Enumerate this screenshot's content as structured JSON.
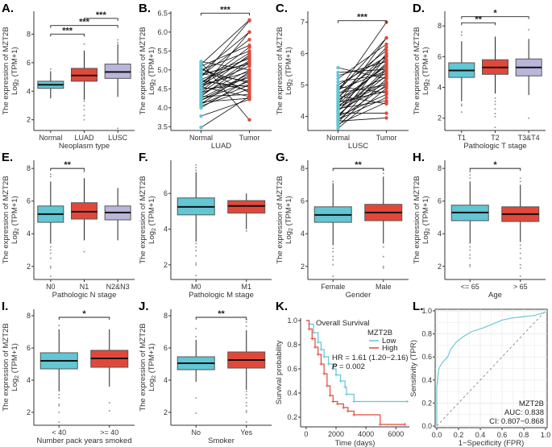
{
  "y_axis_label": {
    "line1": "The expression of MZT2B",
    "log": "Log",
    "sub": "2",
    "rest": " (TPM+1)"
  },
  "colors": {
    "cyan": "#62C6D4",
    "red": "#E2483A",
    "lavender": "#B9B6DA",
    "roc": "#6CC8D8"
  },
  "chart_data": [
    {
      "label": "A.",
      "type": "box",
      "xlabel": "Neoplasm type",
      "ylim": [
        1.25,
        9.6
      ],
      "yticks": [
        2,
        4,
        6,
        8
      ],
      "groups": [
        {
          "name": "Normal",
          "color": "cyan",
          "lo": 3.5,
          "q1": 4.2,
          "med": 4.45,
          "q3": 4.7,
          "hi": 5.4,
          "outliers": [
            5.55
          ]
        },
        {
          "name": "LUAD",
          "color": "red",
          "lo": 3.4,
          "q1": 4.7,
          "med": 5.1,
          "q3": 5.6,
          "hi": 6.85,
          "outliers": [
            7.3,
            3.3,
            3.0,
            2.7,
            2.3,
            2.0
          ]
        },
        {
          "name": "LUSC",
          "color": "lavender",
          "lo": 3.6,
          "q1": 4.9,
          "med": 5.35,
          "q3": 5.9,
          "hi": 7.3,
          "outliers": [
            7.6,
            7.4,
            1.4
          ]
        }
      ],
      "brackets": [
        {
          "from": 0,
          "to": 1,
          "y": 8.0,
          "text": "***"
        },
        {
          "from": 0,
          "to": 2,
          "y": 8.6,
          "text": "***"
        },
        {
          "from": 1,
          "to": 2,
          "y": 9.1,
          "text": "***"
        }
      ]
    },
    {
      "label": "B.",
      "type": "paired",
      "xlabel": "LUAD",
      "ylim": [
        3.4,
        6.55
      ],
      "yticks": [
        3.5,
        4.0,
        4.5,
        5.0,
        5.5,
        6.0,
        6.5
      ],
      "tickfmt": 1,
      "categories": [
        "Normal",
        "Tumor"
      ],
      "pairs": [
        [
          3.48,
          4.3
        ],
        [
          3.78,
          4.22
        ],
        [
          4.05,
          4.5
        ],
        [
          4.1,
          4.6
        ],
        [
          4.15,
          4.25
        ],
        [
          4.2,
          4.7
        ],
        [
          4.25,
          4.9
        ],
        [
          4.3,
          4.35
        ],
        [
          4.35,
          5.0
        ],
        [
          4.4,
          4.8
        ],
        [
          4.45,
          5.4
        ],
        [
          4.5,
          4.6
        ],
        [
          4.55,
          5.1
        ],
        [
          4.6,
          4.95
        ],
        [
          4.65,
          5.6
        ],
        [
          4.7,
          4.55
        ],
        [
          4.75,
          5.2
        ],
        [
          4.8,
          6.3
        ],
        [
          4.85,
          5.3
        ],
        [
          4.9,
          4.7
        ],
        [
          4.95,
          6.0
        ],
        [
          5.0,
          5.5
        ],
        [
          5.05,
          4.4
        ],
        [
          5.1,
          5.65
        ],
        [
          5.15,
          6.32
        ],
        [
          5.2,
          3.68
        ],
        [
          5.22,
          5.0
        ],
        [
          4.3,
          5.2
        ],
        [
          4.5,
          6.0
        ],
        [
          4.2,
          4.85
        ],
        [
          4.6,
          5.35
        ],
        [
          4.0,
          4.75
        ],
        [
          4.75,
          4.45
        ],
        [
          4.85,
          5.8
        ],
        [
          4.1,
          4.95
        ],
        [
          4.4,
          5.25
        ],
        [
          5.0,
          4.65
        ],
        [
          4.65,
          5.45
        ],
        [
          4.55,
          4.3
        ],
        [
          4.9,
          5.15
        ]
      ],
      "brackets": [
        {
          "from": 0,
          "to": 1,
          "y": 6.5,
          "text": "***"
        }
      ]
    },
    {
      "label": "C.",
      "type": "paired",
      "xlabel": "LUSC",
      "ylim": [
        3.55,
        7.35
      ],
      "yticks": [
        4,
        5,
        6,
        7
      ],
      "categories": [
        "Normal",
        "Tumor"
      ],
      "pairs": [
        [
          3.62,
          4.9
        ],
        [
          3.7,
          5.2
        ],
        [
          3.75,
          4.45
        ],
        [
          3.8,
          5.5
        ],
        [
          3.85,
          3.95
        ],
        [
          3.9,
          5.0
        ],
        [
          3.95,
          5.9
        ],
        [
          4.0,
          4.7
        ],
        [
          4.05,
          5.3
        ],
        [
          4.1,
          4.1
        ],
        [
          4.15,
          6.0
        ],
        [
          4.2,
          5.4
        ],
        [
          4.25,
          4.5
        ],
        [
          4.3,
          5.7
        ],
        [
          4.35,
          5.1
        ],
        [
          4.4,
          6.5
        ],
        [
          4.45,
          4.8
        ],
        [
          4.5,
          5.6
        ],
        [
          4.55,
          5.25
        ],
        [
          4.6,
          6.2
        ],
        [
          4.65,
          4.4
        ],
        [
          4.7,
          5.8
        ],
        [
          4.75,
          5.0
        ],
        [
          4.8,
          7.0
        ],
        [
          4.85,
          5.45
        ],
        [
          4.9,
          6.1
        ],
        [
          4.95,
          4.75
        ],
        [
          5.0,
          5.9
        ],
        [
          5.1,
          5.35
        ],
        [
          5.2,
          6.3
        ],
        [
          5.3,
          5.75
        ],
        [
          5.4,
          5.5
        ],
        [
          5.55,
          5.2
        ],
        [
          4.0,
          5.55
        ],
        [
          4.2,
          4.95
        ],
        [
          4.4,
          5.65
        ],
        [
          3.9,
          4.6
        ],
        [
          4.6,
          5.95
        ],
        [
          4.3,
          5.05
        ],
        [
          4.8,
          6.5
        ]
      ],
      "brackets": [
        {
          "from": 0,
          "to": 1,
          "y": 7.05,
          "text": "***"
        }
      ]
    },
    {
      "label": "D.",
      "type": "box",
      "xlabel": "Pathologic T stage",
      "ylim": [
        1.2,
        8.95
      ],
      "yticks": [
        2,
        4,
        6,
        8
      ],
      "groups": [
        {
          "name": "T1",
          "color": "cyan",
          "lo": 3.1,
          "q1": 4.65,
          "med": 5.1,
          "q3": 5.6,
          "hi": 7.0,
          "outliers": [
            7.6,
            7.4,
            2.9,
            2.8,
            2.4
          ]
        },
        {
          "name": "T2",
          "color": "red",
          "lo": 3.6,
          "q1": 4.85,
          "med": 5.3,
          "q3": 5.8,
          "hi": 7.3,
          "outliers": [
            3.3,
            3.1,
            2.9,
            2.6,
            2.3,
            2.1,
            1.4
          ]
        },
        {
          "name": "T3&T4",
          "color": "lavender",
          "lo": 3.5,
          "q1": 4.75,
          "med": 5.3,
          "q3": 5.85,
          "hi": 7.15,
          "outliers": [
            7.75,
            2.0
          ]
        }
      ],
      "brackets": [
        {
          "from": 0,
          "to": 1,
          "y": 8.2,
          "text": "**"
        },
        {
          "from": 0,
          "to": 2,
          "y": 8.6,
          "text": "*"
        }
      ]
    },
    {
      "label": "E.",
      "type": "box",
      "xlabel": "Pathologic N stage",
      "ylim": [
        1.2,
        8.5
      ],
      "yticks": [
        2,
        4,
        6,
        8
      ],
      "groups": [
        {
          "name": "N0",
          "color": "cyan",
          "lo": 3.4,
          "q1": 4.7,
          "med": 5.2,
          "q3": 5.7,
          "hi": 7.2,
          "outliers": [
            7.65,
            7.5,
            3.2,
            3.0,
            2.8,
            2.5,
            2.0,
            1.9,
            1.4
          ]
        },
        {
          "name": "N1",
          "color": "red",
          "lo": 3.6,
          "q1": 4.9,
          "med": 5.35,
          "q3": 5.9,
          "hi": 7.4,
          "outliers": [
            7.8,
            2.9
          ]
        },
        {
          "name": "N2&N3",
          "color": "lavender",
          "lo": 3.6,
          "q1": 4.85,
          "med": 5.3,
          "q3": 5.7,
          "hi": 6.8,
          "outliers": []
        }
      ],
      "brackets": [
        {
          "from": 0,
          "to": 1,
          "y": 8.0,
          "text": "**"
        }
      ]
    },
    {
      "label": "F.",
      "type": "box",
      "xlabel": "Pathologic M stage",
      "ylim": [
        1.18,
        7.86
      ],
      "yticks": [
        2,
        4,
        6
      ],
      "groups": [
        {
          "name": "M0",
          "color": "cyan",
          "lo": 3.3,
          "q1": 4.8,
          "med": 5.25,
          "q3": 5.75,
          "hi": 7.2,
          "outliers": [
            7.6,
            7.45,
            7.3,
            3.2,
            3.0,
            2.8,
            2.5,
            2.1,
            2.0,
            1.4
          ]
        },
        {
          "name": "M1",
          "color": "red",
          "lo": 4.0,
          "q1": 4.9,
          "med": 5.3,
          "q3": 5.6,
          "hi": 6.0,
          "outliers": [
            3.9
          ]
        }
      ],
      "brackets": []
    },
    {
      "label": "G.",
      "type": "box",
      "xlabel": "Gender",
      "ylim": [
        1.2,
        8.5
      ],
      "yticks": [
        2,
        4,
        6,
        8
      ],
      "groups": [
        {
          "name": "Female",
          "color": "cyan",
          "lo": 3.3,
          "q1": 4.7,
          "med": 5.15,
          "q3": 5.65,
          "hi": 7.1,
          "outliers": [
            7.2,
            3.1,
            2.9,
            2.6,
            2.4,
            2.1,
            1.4
          ]
        },
        {
          "name": "Male",
          "color": "red",
          "lo": 3.4,
          "q1": 4.8,
          "med": 5.3,
          "q3": 5.8,
          "hi": 7.5,
          "outliers": [
            7.9,
            7.7,
            3.2,
            2.6,
            2.0,
            1.9
          ]
        }
      ],
      "brackets": [
        {
          "from": 0,
          "to": 1,
          "y": 8.0,
          "text": "**"
        }
      ]
    },
    {
      "label": "H.",
      "type": "box",
      "xlabel": "Age",
      "ylim": [
        1.2,
        8.5
      ],
      "yticks": [
        2,
        4,
        6,
        8
      ],
      "groups": [
        {
          "name": "<= 65",
          "color": "cyan",
          "lo": 3.4,
          "q1": 4.8,
          "med": 5.3,
          "q3": 5.75,
          "hi": 7.2,
          "outliers": [
            7.8,
            7.6,
            7.4,
            3.2,
            3.0,
            2.7,
            2.5,
            2.1,
            2.0
          ]
        },
        {
          "name": "> 65",
          "color": "red",
          "lo": 3.5,
          "q1": 4.75,
          "med": 5.2,
          "q3": 5.65,
          "hi": 7.0,
          "outliers": [
            7.4,
            7.2,
            3.3,
            3.1,
            2.8,
            2.5,
            2.1,
            1.9,
            1.4
          ]
        }
      ],
      "brackets": [
        {
          "from": 0,
          "to": 1,
          "y": 8.0,
          "text": "*"
        }
      ]
    },
    {
      "label": "I.",
      "type": "box",
      "xlabel": "Number pack years smoked",
      "ylim": [
        1.2,
        8.4
      ],
      "yticks": [
        2,
        4,
        6,
        8
      ],
      "groups": [
        {
          "name": "< 40",
          "color": "cyan",
          "lo": 3.3,
          "q1": 4.7,
          "med": 5.2,
          "q3": 5.7,
          "hi": 7.15,
          "outliers": [
            7.4,
            3.1,
            2.9,
            2.5,
            2.4,
            2.0,
            1.4
          ]
        },
        {
          "name": ">= 40",
          "color": "red",
          "lo": 3.6,
          "q1": 4.8,
          "med": 5.35,
          "q3": 5.85,
          "hi": 7.15,
          "outliers": [
            2.6,
            2.1
          ]
        }
      ],
      "brackets": [
        {
          "from": 0,
          "to": 1,
          "y": 7.9,
          "text": "*"
        }
      ]
    },
    {
      "label": "J.",
      "type": "box",
      "xlabel": "Smoker",
      "ylim": [
        1.2,
        8.4
      ],
      "yticks": [
        2,
        4,
        6,
        8
      ],
      "groups": [
        {
          "name": "No",
          "color": "cyan",
          "lo": 3.9,
          "q1": 4.65,
          "med": 5.05,
          "q3": 5.45,
          "hi": 6.5,
          "outliers": [
            7.2,
            6.7,
            2.9,
            1.95
          ]
        },
        {
          "name": "Yes",
          "color": "red",
          "lo": 3.4,
          "q1": 4.75,
          "med": 5.25,
          "q3": 5.75,
          "hi": 7.1,
          "outliers": [
            7.75,
            7.6,
            7.35,
            3.3,
            3.1,
            2.9,
            2.6,
            2.4,
            2.1,
            2.0,
            1.4
          ]
        }
      ],
      "brackets": [
        {
          "from": 0,
          "to": 1,
          "y": 7.9,
          "text": "**"
        }
      ]
    },
    {
      "label": "K.",
      "type": "line",
      "title": "Overall Survival",
      "xlabel": "Time (days)",
      "ylabel": "Survival probability",
      "xlim": [
        -370,
        6900
      ],
      "ylim": [
        0.12,
        1.02
      ],
      "xticks": [
        0,
        2000,
        4000,
        6000
      ],
      "yticks": [
        0.2,
        0.4,
        0.6,
        0.8,
        1.0
      ],
      "legend_title": "MZT2B",
      "hr_text": "HR = 1.61 (1.20−2.16)",
      "p_label": "P",
      "p_value": " = 0.002",
      "series": [
        {
          "name": "Low",
          "color": "cyan",
          "points": [
            [
              0,
              1
            ],
            [
              200,
              0.97
            ],
            [
              500,
              0.9
            ],
            [
              800,
              0.82
            ],
            [
              1000,
              0.76
            ],
            [
              1200,
              0.7
            ],
            [
              1500,
              0.64
            ],
            [
              1800,
              0.6
            ],
            [
              2000,
              0.55
            ],
            [
              2300,
              0.5
            ],
            [
              2600,
              0.45
            ],
            [
              2700,
              0.39
            ],
            [
              3200,
              0.33
            ],
            [
              6750,
              0.33
            ]
          ]
        },
        {
          "name": "High",
          "color": "red",
          "points": [
            [
              0,
              1
            ],
            [
              200,
              0.93
            ],
            [
              400,
              0.85
            ],
            [
              600,
              0.78
            ],
            [
              800,
              0.72
            ],
            [
              1000,
              0.64
            ],
            [
              1200,
              0.56
            ],
            [
              1400,
              0.46
            ],
            [
              1600,
              0.38
            ],
            [
              1800,
              0.33
            ],
            [
              2100,
              0.31
            ],
            [
              2500,
              0.28
            ],
            [
              2800,
              0.25
            ],
            [
              3200,
              0.22
            ],
            [
              4950,
              0.14
            ],
            [
              6600,
              0.14
            ]
          ]
        }
      ]
    },
    {
      "label": "L.",
      "type": "line",
      "xlabel": "1−Specificity (FPR)",
      "ylabel": "Sensitivity (TPR)",
      "xlim": [
        0,
        1
      ],
      "ylim": [
        0,
        1
      ],
      "xticks": [
        0.0,
        0.2,
        0.4,
        0.6,
        0.8,
        1.0
      ],
      "yticks": [
        0.0,
        0.2,
        0.4,
        0.6,
        0.8,
        1.0
      ],
      "grid": true,
      "legend_title": "MZT2B",
      "auc_text": "AUC: 0.838",
      "ci_text": "CI: 0.807−0.868",
      "series": [
        {
          "color": "roc",
          "points": [
            [
              0,
              0
            ],
            [
              0,
              0.33
            ],
            [
              0.01,
              0.42
            ],
            [
              0.02,
              0.5
            ],
            [
              0.05,
              0.55
            ],
            [
              0.1,
              0.6
            ],
            [
              0.13,
              0.67
            ],
            [
              0.18,
              0.73
            ],
            [
              0.25,
              0.78
            ],
            [
              0.32,
              0.82
            ],
            [
              0.42,
              0.85
            ],
            [
              0.5,
              0.88
            ],
            [
              0.6,
              0.92
            ],
            [
              0.7,
              0.94
            ],
            [
              0.8,
              0.95
            ],
            [
              0.9,
              0.96
            ],
            [
              1,
              0.99
            ]
          ]
        }
      ]
    }
  ]
}
